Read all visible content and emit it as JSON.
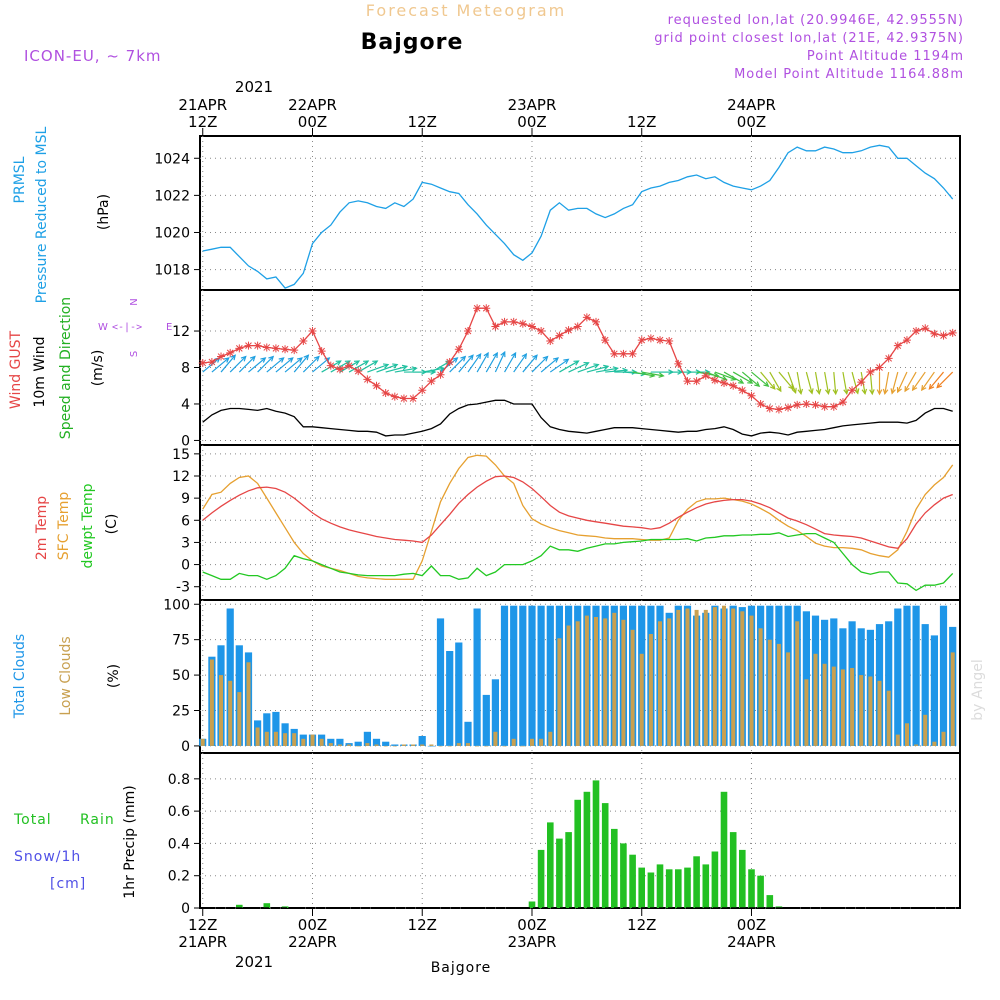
{
  "header": {
    "title": "Forecast Meteogram",
    "location": "Bajgore",
    "model": "ICON-EU, ~ 7km",
    "requested": "requested lon,lat (20.9946E, 42.9555N)",
    "grid_point": "grid point closest lon,lat (21E, 42.9375N)",
    "point_altitude": "Point Altitude 1194m",
    "model_altitude": "Model Point Altitude 1164.88m",
    "footer_location": "Bajgore",
    "watermark": "by Angel"
  },
  "colors": {
    "pressure": "#1ea0e6",
    "gust": "#e64646",
    "wind": "#000000",
    "windlabel": "#22b022",
    "temp": "#e64646",
    "sfc": "#e6a030",
    "dewpt": "#22c822",
    "total_clouds": "#1e96e8",
    "low_clouds": "#c8a050",
    "rain": "#22c022",
    "snow": "#5050e6",
    "header_purple": "#b050e0",
    "title_gold": "#f0c890"
  },
  "time_axis": {
    "top_year": "2021",
    "ticks": [
      {
        "t": 12,
        "top1": "21APR",
        "top2": "12Z",
        "bot1": "12Z",
        "bot2": "21APR"
      },
      {
        "t": 24,
        "top1": "22APR",
        "top2": "00Z",
        "bot1": "00Z",
        "bot2": "22APR"
      },
      {
        "t": 36,
        "top1": "",
        "top2": "12Z",
        "bot1": "12Z",
        "bot2": ""
      },
      {
        "t": 48,
        "top1": "23APR",
        "top2": "00Z",
        "bot1": "00Z",
        "bot2": "23APR"
      },
      {
        "t": 60,
        "top1": "",
        "top2": "12Z",
        "bot1": "12Z",
        "bot2": ""
      },
      {
        "t": 72,
        "top1": "24APR",
        "top2": "00Z",
        "bot1": "00Z",
        "bot2": "24APR"
      }
    ],
    "bottom_year": "2021"
  },
  "panels": {
    "pressure": {
      "labels": [
        "PRMSL",
        "Pressure Reduced to MSL"
      ],
      "unit": "(hPa)",
      "yticks": [
        1018,
        1020,
        1022,
        1024
      ]
    },
    "wind": {
      "labels": [
        "Wind GUST",
        "10m Wind",
        "Speed and Direction"
      ],
      "unit": "(m/s)",
      "yticks": [
        0,
        4,
        8,
        12
      ],
      "compass": {
        "n": "N",
        "s": "S",
        "w": "W",
        "e": "E"
      }
    },
    "temp": {
      "labels": [
        "2m Temp",
        "SFC Temp",
        "dewpt Temp"
      ],
      "unit": "(C)",
      "yticks": [
        -3,
        0,
        3,
        6,
        9,
        12,
        15
      ]
    },
    "clouds": {
      "labels": [
        "Total Clouds",
        "Low Clouds"
      ],
      "unit": "(%)",
      "yticks": [
        0,
        25,
        50,
        75,
        100
      ]
    },
    "precip": {
      "labels": [
        "Total",
        "Rain",
        "Snow/1h",
        "[cm]"
      ],
      "unit": "1hr Precip (mm)",
      "yticks": [
        "0",
        "0.2",
        "0.4",
        "0.6",
        "0.8"
      ]
    }
  },
  "chart_data": [
    {
      "type": "line",
      "name": "PRMSL",
      "x_start": 12,
      "x_step": 1,
      "ylim": [
        1016.9,
        1025.2
      ],
      "series": [
        {
          "name": "PRMSL",
          "values": [
            1019.0,
            1019.1,
            1019.2,
            1019.2,
            1018.7,
            1018.2,
            1017.9,
            1017.5,
            1017.6,
            1017.0,
            1017.2,
            1017.8,
            1019.4,
            1020.0,
            1020.4,
            1021.1,
            1021.6,
            1021.7,
            1021.6,
            1021.4,
            1021.3,
            1021.6,
            1021.4,
            1021.8,
            1022.7,
            1022.6,
            1022.4,
            1022.2,
            1022.1,
            1021.5,
            1021.0,
            1020.4,
            1019.9,
            1019.4,
            1018.8,
            1018.5,
            1018.9,
            1019.8,
            1021.2,
            1021.6,
            1021.2,
            1021.3,
            1021.3,
            1021.0,
            1020.8,
            1021.0,
            1021.3,
            1021.5,
            1022.2,
            1022.4,
            1022.5,
            1022.7,
            1022.8,
            1023.0,
            1023.1,
            1022.9,
            1023.0,
            1022.7,
            1022.5,
            1022.4,
            1022.3,
            1022.5,
            1022.8,
            1023.5,
            1024.3,
            1024.6,
            1024.4,
            1024.4,
            1024.6,
            1024.5,
            1024.3,
            1024.3,
            1024.4,
            1024.6,
            1024.7,
            1024.6,
            1024.0,
            1024.0,
            1023.6,
            1023.2,
            1022.9,
            1022.4,
            1021.8
          ]
        }
      ]
    },
    {
      "type": "line",
      "name": "Wind",
      "x_start": 12,
      "x_step": 1,
      "ylim": [
        -0.5,
        16.5
      ],
      "series": [
        {
          "name": "Wind GUST",
          "values": [
            8.5,
            8.6,
            9.2,
            9.6,
            10.1,
            10.4,
            10.4,
            10.2,
            10.1,
            10.0,
            9.9,
            10.9,
            12.0,
            9.8,
            8.2,
            7.8,
            8.2,
            7.6,
            6.7,
            6.0,
            5.2,
            4.8,
            4.6,
            4.6,
            5.5,
            6.5,
            7.2,
            8.6,
            10.0,
            12.0,
            14.5,
            14.5,
            12.5,
            13.0,
            13.0,
            12.8,
            12.5,
            12.0,
            10.9,
            11.5,
            12.1,
            12.5,
            13.5,
            13.0,
            11.0,
            9.5,
            9.5,
            9.5,
            11.0,
            11.2,
            11.0,
            10.9,
            8.4,
            6.5,
            6.5,
            7.1,
            6.6,
            6.3,
            6.0,
            5.5,
            4.9,
            4.0,
            3.5,
            3.4,
            3.6,
            3.9,
            4.0,
            3.9,
            3.7,
            3.7,
            4.2,
            5.5,
            6.4,
            7.5,
            8.0,
            9.0,
            10.4,
            11.0,
            12.0,
            12.3,
            11.7,
            11.5,
            11.8
          ]
        },
        {
          "name": "10m Wind",
          "values": [
            2.0,
            2.8,
            3.3,
            3.5,
            3.5,
            3.4,
            3.3,
            3.5,
            3.2,
            3.0,
            2.6,
            1.5,
            1.5,
            1.4,
            1.3,
            1.2,
            1.1,
            1.0,
            1.0,
            0.9,
            0.5,
            0.6,
            0.6,
            0.8,
            1.0,
            1.3,
            1.8,
            2.9,
            3.5,
            3.9,
            4.0,
            4.2,
            4.4,
            4.4,
            4.0,
            4.0,
            4.0,
            2.5,
            1.5,
            1.2,
            1.0,
            0.9,
            0.8,
            1.0,
            1.2,
            1.4,
            1.4,
            1.4,
            1.3,
            1.2,
            1.1,
            1.0,
            0.9,
            1.0,
            1.0,
            1.2,
            1.3,
            1.5,
            1.2,
            0.7,
            0.5,
            0.8,
            0.9,
            0.8,
            0.6,
            0.9,
            1.0,
            1.1,
            1.2,
            1.4,
            1.6,
            1.7,
            1.8,
            1.9,
            2.0,
            2.0,
            2.0,
            1.9,
            2.2,
            3.0,
            3.5,
            3.5,
            3.2
          ]
        }
      ]
    },
    {
      "type": "line",
      "name": "Temperature",
      "x_start": 12,
      "x_step": 1,
      "ylim": [
        -4.8,
        16.2
      ],
      "series": [
        {
          "name": "2m Temp",
          "values": [
            6.0,
            7.0,
            7.9,
            8.7,
            9.4,
            10.0,
            10.4,
            10.5,
            10.3,
            9.8,
            9.0,
            8.0,
            7.0,
            6.2,
            5.6,
            5.1,
            4.7,
            4.4,
            4.1,
            3.8,
            3.6,
            3.4,
            3.3,
            3.2,
            3.0,
            4.0,
            5.4,
            6.8,
            8.3,
            9.5,
            10.5,
            11.3,
            11.9,
            12.0,
            11.8,
            11.2,
            10.3,
            9.2,
            8.0,
            7.1,
            6.6,
            6.3,
            6.0,
            5.8,
            5.6,
            5.4,
            5.2,
            5.1,
            5.0,
            4.8,
            5.0,
            5.6,
            6.4,
            7.1,
            7.7,
            8.2,
            8.5,
            8.7,
            8.8,
            8.8,
            8.6,
            8.2,
            7.7,
            7.0,
            6.3,
            5.9,
            5.4,
            4.8,
            4.2,
            4.0,
            3.9,
            3.8,
            3.6,
            3.2,
            2.8,
            2.4,
            2.2,
            3.5,
            5.5,
            7.0,
            8.1,
            9.0,
            9.5
          ]
        },
        {
          "name": "SFC Temp",
          "values": [
            7.5,
            9.5,
            9.8,
            11.0,
            11.8,
            12.0,
            11.0,
            9.0,
            7.0,
            5.0,
            3.0,
            1.5,
            0.5,
            -0.2,
            -0.5,
            -0.8,
            -1.2,
            -1.6,
            -1.8,
            -1.9,
            -2.0,
            -2.0,
            -2.0,
            -2.0,
            0.5,
            4.5,
            8.5,
            11.0,
            13.0,
            14.5,
            14.8,
            14.7,
            13.5,
            12.0,
            11.0,
            8.0,
            6.2,
            5.5,
            5.0,
            4.6,
            4.3,
            4.0,
            3.9,
            3.8,
            3.6,
            3.5,
            3.5,
            3.5,
            3.4,
            3.3,
            3.3,
            3.6,
            6.0,
            7.5,
            8.5,
            8.9,
            8.9,
            9.0,
            8.8,
            8.6,
            8.2,
            7.6,
            6.9,
            6.0,
            5.2,
            4.6,
            3.8,
            2.9,
            2.5,
            2.3,
            2.3,
            2.2,
            2.0,
            1.5,
            1.2,
            1.0,
            2.0,
            4.5,
            7.5,
            9.5,
            10.8,
            11.8,
            13.5
          ]
        },
        {
          "name": "dewpt Temp",
          "values": [
            -1.0,
            -1.5,
            -2.0,
            -2.0,
            -1.2,
            -1.5,
            -1.5,
            -2.0,
            -1.5,
            -0.5,
            1.2,
            0.8,
            0.5,
            0.0,
            -0.5,
            -1.0,
            -1.2,
            -1.4,
            -1.5,
            -1.5,
            -1.5,
            -1.5,
            -1.3,
            -1.2,
            -1.5,
            -0.2,
            -1.5,
            -1.5,
            -2.0,
            -1.8,
            -0.5,
            -1.5,
            -1.0,
            0.0,
            0.0,
            0.0,
            0.5,
            1.2,
            2.5,
            2.0,
            2.0,
            1.8,
            2.2,
            2.5,
            2.8,
            2.8,
            3.0,
            3.1,
            3.2,
            3.4,
            3.4,
            3.4,
            3.4,
            3.5,
            3.2,
            3.6,
            3.7,
            3.9,
            3.9,
            4.0,
            4.0,
            4.1,
            4.1,
            4.3,
            3.8,
            4.0,
            4.2,
            4.2,
            3.6,
            3.0,
            1.5,
            0.0,
            -1.0,
            -1.3,
            -1.0,
            -1.0,
            -2.5,
            -2.6,
            -3.5,
            -2.8,
            -2.8,
            -2.5,
            -1.2
          ]
        }
      ]
    },
    {
      "type": "bar",
      "name": "Clouds",
      "x_start": 12,
      "x_step": 1,
      "ylim": [
        -5,
        103
      ],
      "series": [
        {
          "name": "Total Clouds",
          "values": [
            5,
            63,
            71,
            97,
            71,
            66,
            18,
            23,
            24,
            16,
            12,
            8,
            8,
            8,
            5,
            5,
            2,
            3,
            10,
            5,
            3,
            1,
            1,
            1,
            7,
            0,
            90,
            67,
            73,
            17,
            97,
            36,
            47,
            99,
            99,
            99,
            99,
            99,
            99,
            99,
            99,
            99,
            99,
            99,
            99,
            99,
            99,
            99,
            99,
            99,
            99,
            94,
            99,
            99,
            92,
            94,
            99,
            97,
            99,
            98,
            99,
            99,
            99,
            99,
            99,
            99,
            95,
            92,
            89,
            90,
            83,
            88,
            83,
            82,
            86,
            88,
            97,
            99,
            99,
            86,
            78,
            99,
            84
          ]
        },
        {
          "name": "Low Clouds",
          "values": [
            5,
            61,
            50,
            46,
            38,
            59,
            13,
            10,
            10,
            9,
            9,
            5,
            8,
            5,
            2,
            1,
            1,
            0,
            2,
            1,
            0,
            0,
            1,
            1,
            1,
            1,
            0,
            0,
            2,
            2,
            0,
            0,
            10,
            0,
            5,
            0,
            5,
            5,
            10,
            76,
            85,
            88,
            92,
            91,
            90,
            94,
            89,
            82,
            65,
            79,
            88,
            90,
            96,
            97,
            96,
            96,
            98,
            99,
            97,
            95,
            92,
            83,
            75,
            72,
            66,
            88,
            47,
            65,
            58,
            56,
            54,
            55,
            50,
            49,
            46,
            39,
            8,
            16,
            1,
            22,
            3,
            10,
            66
          ]
        }
      ]
    },
    {
      "type": "bar",
      "name": "Precipitation",
      "x_start": 12,
      "x_step": 1,
      "ylim": [
        0,
        0.96
      ],
      "series": [
        {
          "name": "1hr Precip",
          "values": [
            0,
            0,
            0,
            0,
            0.02,
            0,
            0,
            0,
            0,
            0,
            0,
            0,
            0,
            0,
            0,
            0,
            0,
            0,
            0,
            0,
            0,
            0,
            0,
            0,
            0,
            0,
            0,
            0,
            0,
            0,
            0,
            0,
            0,
            0,
            0,
            0,
            0.04,
            0.36,
            0.53,
            0.43,
            0.47,
            0.67,
            0.72,
            0.79,
            0.65,
            0.49,
            0.4,
            0.33,
            0.25,
            0.22,
            0.27,
            0.24,
            0.24,
            0.25,
            0.32,
            0.27,
            0.35,
            0.72,
            0.47,
            0.36,
            0.24,
            0.2,
            0.08,
            0.01,
            0,
            0,
            0,
            0,
            0,
            0,
            0,
            0,
            0,
            0,
            0,
            0,
            0,
            0,
            0,
            0,
            0,
            0,
            0
          ]
        },
        {
          "name": "Snow/1h",
          "values": [
            0,
            0,
            0,
            0,
            0,
            0,
            0,
            0.03,
            0,
            0.01,
            0,
            0,
            0,
            0,
            0,
            0,
            0,
            0,
            0,
            0,
            0,
            0,
            0,
            0,
            0,
            0,
            0,
            0,
            0,
            0,
            0,
            0,
            0,
            0,
            0,
            0,
            0,
            0,
            0,
            0,
            0,
            0,
            0,
            0,
            0,
            0,
            0,
            0,
            0,
            0,
            0,
            0,
            0,
            0,
            0,
            0,
            0,
            0,
            0,
            0,
            0,
            0,
            0,
            0,
            0,
            0,
            0,
            0,
            0,
            0,
            0,
            0,
            0,
            0,
            0,
            0,
            0,
            0,
            0,
            0,
            0,
            0,
            0
          ]
        }
      ]
    }
  ],
  "wind_directions": [
    230,
    230,
    220,
    225,
    225,
    230,
    225,
    230,
    230,
    230,
    220,
    225,
    230,
    240,
    240,
    240,
    240,
    240,
    250,
    250,
    255,
    260,
    270,
    270,
    260,
    240,
    230,
    225,
    220,
    215,
    210,
    210,
    205,
    210,
    215,
    220,
    225,
    230,
    235,
    240,
    245,
    250,
    255,
    260,
    265,
    270,
    275,
    280,
    280,
    270,
    270,
    270,
    270,
    270,
    280,
    290,
    290,
    300,
    300,
    310,
    310,
    320,
    330,
    320,
    340,
    350,
    345,
    350,
    350,
    355,
    350,
    345,
    350,
    355,
    0,
    10,
    15,
    25,
    30,
    35,
    35,
    40,
    45
  ]
}
